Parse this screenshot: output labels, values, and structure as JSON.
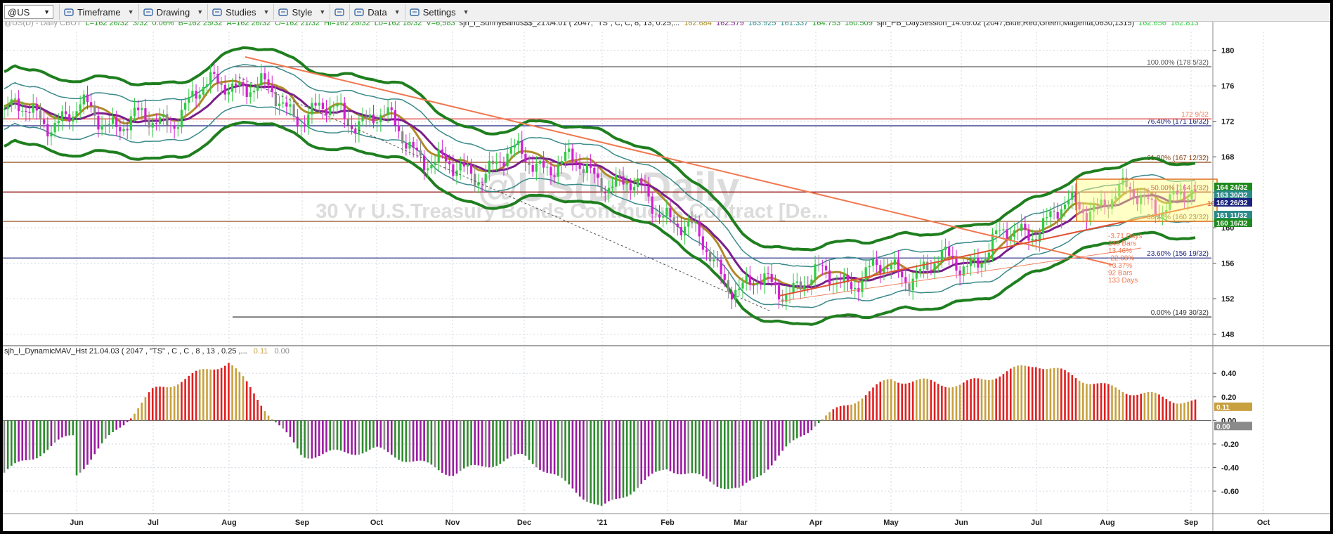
{
  "toolbar": {
    "symbol": "@US",
    "items": [
      {
        "label": "Timeframe",
        "icon": "clock-icon"
      },
      {
        "label": "Drawing",
        "icon": "pencil-icon"
      },
      {
        "label": "Studies",
        "icon": "studies-icon"
      },
      {
        "label": "Style",
        "icon": "style-icon"
      },
      {
        "label": "",
        "icon": "panels-icon"
      },
      {
        "label": "Data",
        "icon": "data-icon"
      },
      {
        "label": "Settings",
        "icon": "gear-icon"
      }
    ]
  },
  "header1": [
    {
      "text": "@US(D) - Daily  CBOT",
      "color": "#9a9a9a"
    },
    {
      "text": "L=162 26/32",
      "color": "#1e9a1e"
    },
    {
      "text": "3/32",
      "color": "#1e9a1e"
    },
    {
      "text": "0.06%",
      "color": "#1e9a1e"
    },
    {
      "text": "B=162 25/32",
      "color": "#1e9a1e"
    },
    {
      "text": "A=162 26/32",
      "color": "#1e9a1e"
    },
    {
      "text": "O=162 21/32",
      "color": "#1e9a1e"
    },
    {
      "text": "Hi=162 26/32",
      "color": "#1e9a1e"
    },
    {
      "text": "Lo=162 18/32",
      "color": "#1e9a1e"
    },
    {
      "text": "V=6,583",
      "color": "#1e9a1e"
    },
    {
      "text": "sjh_I_SunnyBands$$_21.04.01 (  2047, \"TS\",  C,  C,    8,  13,  0.25,...",
      "color": "#222222"
    },
    {
      "text": "162.684",
      "color": "#a38a1a"
    },
    {
      "text": "162.579",
      "color": "#7a1f8a"
    },
    {
      "text": "163.925",
      "color": "#2a8a8a"
    },
    {
      "text": "161.337",
      "color": "#2a8a8a"
    },
    {
      "text": "164.753",
      "color": "#1e9a1e"
    },
    {
      "text": "160.509",
      "color": "#1e9a1e"
    },
    {
      "text": "sjh_PB_DaySession_14.09.02 (2047,Blue,Red,Green,Magenta,0630,1315)",
      "color": "#222222"
    },
    {
      "text": "162.656",
      "color": "#2ecc40"
    },
    {
      "text": "162.813",
      "color": "#2ecc40"
    }
  ],
  "watermark": {
    "line1": "@US(D) Daily",
    "line2": "30 Yr U.S.Treasury Bonds Continuous Contract [De..."
  },
  "y_axis_price": [
    "180",
    "176",
    "172",
    "168",
    "164",
    "160",
    "156",
    "152",
    "148"
  ],
  "y_axis_osc": [
    "0.40",
    "0.20",
    "0.00",
    "-0.20",
    "-0.40",
    "-0.60"
  ],
  "x_axis": [
    "Jun",
    "Jul",
    "Aug",
    "Sep",
    "Oct",
    "Nov",
    "Dec",
    "'21",
    "Feb",
    "Mar",
    "Apr",
    "May",
    "Jun",
    "Jul",
    "Aug",
    "Sep",
    "Oct"
  ],
  "fib_levels": [
    {
      "label": "100.00% (178 5/32)",
      "price": 178.16,
      "color": "#555555"
    },
    {
      "label": "76.40% (171 16/32)",
      "price": 171.5,
      "color": "#1a237e"
    },
    {
      "label": "61.80% (167 12/32)",
      "price": 167.38,
      "color": "#8b4513"
    },
    {
      "label": "50.00% (164 1/32)",
      "price": 164.03,
      "color": "#8b0000"
    },
    {
      "label": "38.20% (160 23/32)",
      "price": 160.72,
      "color": "#8b4513"
    },
    {
      "label": "23.60% (156 19/32)",
      "price": 156.59,
      "color": "#1a237e"
    },
    {
      "label": "0.00% (149 30/32)",
      "price": 149.94,
      "color": "#333333"
    }
  ],
  "price_flags": [
    {
      "text": "164 24/32",
      "bg": "#1e8a1e"
    },
    {
      "text": "163 30/32",
      "bg": "#2a8a8a"
    },
    {
      "text": "162 26/32",
      "bg": "#1a237e"
    },
    {
      "text": "161 11/32",
      "bg": "#2a8a8a"
    },
    {
      "text": "160 16/32",
      "bg": "#1e8a1e"
    }
  ],
  "annotations": {
    "top_right": "172 9/32",
    "price_tag": "162 26/32",
    "stats": [
      "-3.71 Days",
      "246 Bars",
      "13.46%",
      "-22.08%",
      "+3.37%",
      "92 Bars",
      "133 Days"
    ]
  },
  "indicator": {
    "label": "sjh_I_DynamicMAV_Hst 21.04.03 ( 2047 , \"TS\" , C , C ,  8 , 13 , 0.25 ,...",
    "value1": "0.11",
    "value2": "0.00",
    "flag_value": "0.11",
    "flag_zero": "0.00"
  },
  "colors": {
    "gold": "#c8a040",
    "green": "#2e8b2e",
    "red": "#e02020",
    "magenta": "#9a1aa0",
    "gray": "#8a8a8a"
  },
  "chart_data": [
    {
      "type": "line",
      "title": "@US(D) - Daily  CBOT",
      "x": [
        "Jun",
        "Jul",
        "Aug",
        "Sep",
        "Oct",
        "Nov",
        "Dec",
        "'21",
        "Feb",
        "Mar",
        "Apr",
        "May",
        "Jun",
        "Jul",
        "Aug",
        "Sep"
      ],
      "series": [
        {
          "name": "@US",
          "values": [
            173.0,
            171.5,
            177.0,
            173.0,
            172.5,
            166.0,
            168.0,
            166.0,
            162.0,
            153.0,
            154.0,
            155.0,
            156.0,
            160.5,
            163.5,
            163.0
          ]
        }
      ],
      "ylim": [
        147,
        182
      ],
      "grid": true
    },
    {
      "type": "bar",
      "title": "sjh_I_DynamicMAV_Hst 21.04.03",
      "categories": [
        "Jun",
        "Jul",
        "Aug",
        "Sep",
        "Oct",
        "Nov",
        "Dec",
        "'21",
        "Feb",
        "Mar",
        "Apr",
        "May",
        "Jun",
        "Jul",
        "Aug",
        "Sep"
      ],
      "values": [
        -0.45,
        0.25,
        0.5,
        -0.3,
        -0.25,
        -0.45,
        -0.3,
        -0.75,
        -0.4,
        -0.6,
        -0.02,
        0.35,
        0.3,
        0.48,
        0.28,
        0.15
      ],
      "ylim": [
        -0.75,
        0.55
      ],
      "grid": true
    }
  ]
}
